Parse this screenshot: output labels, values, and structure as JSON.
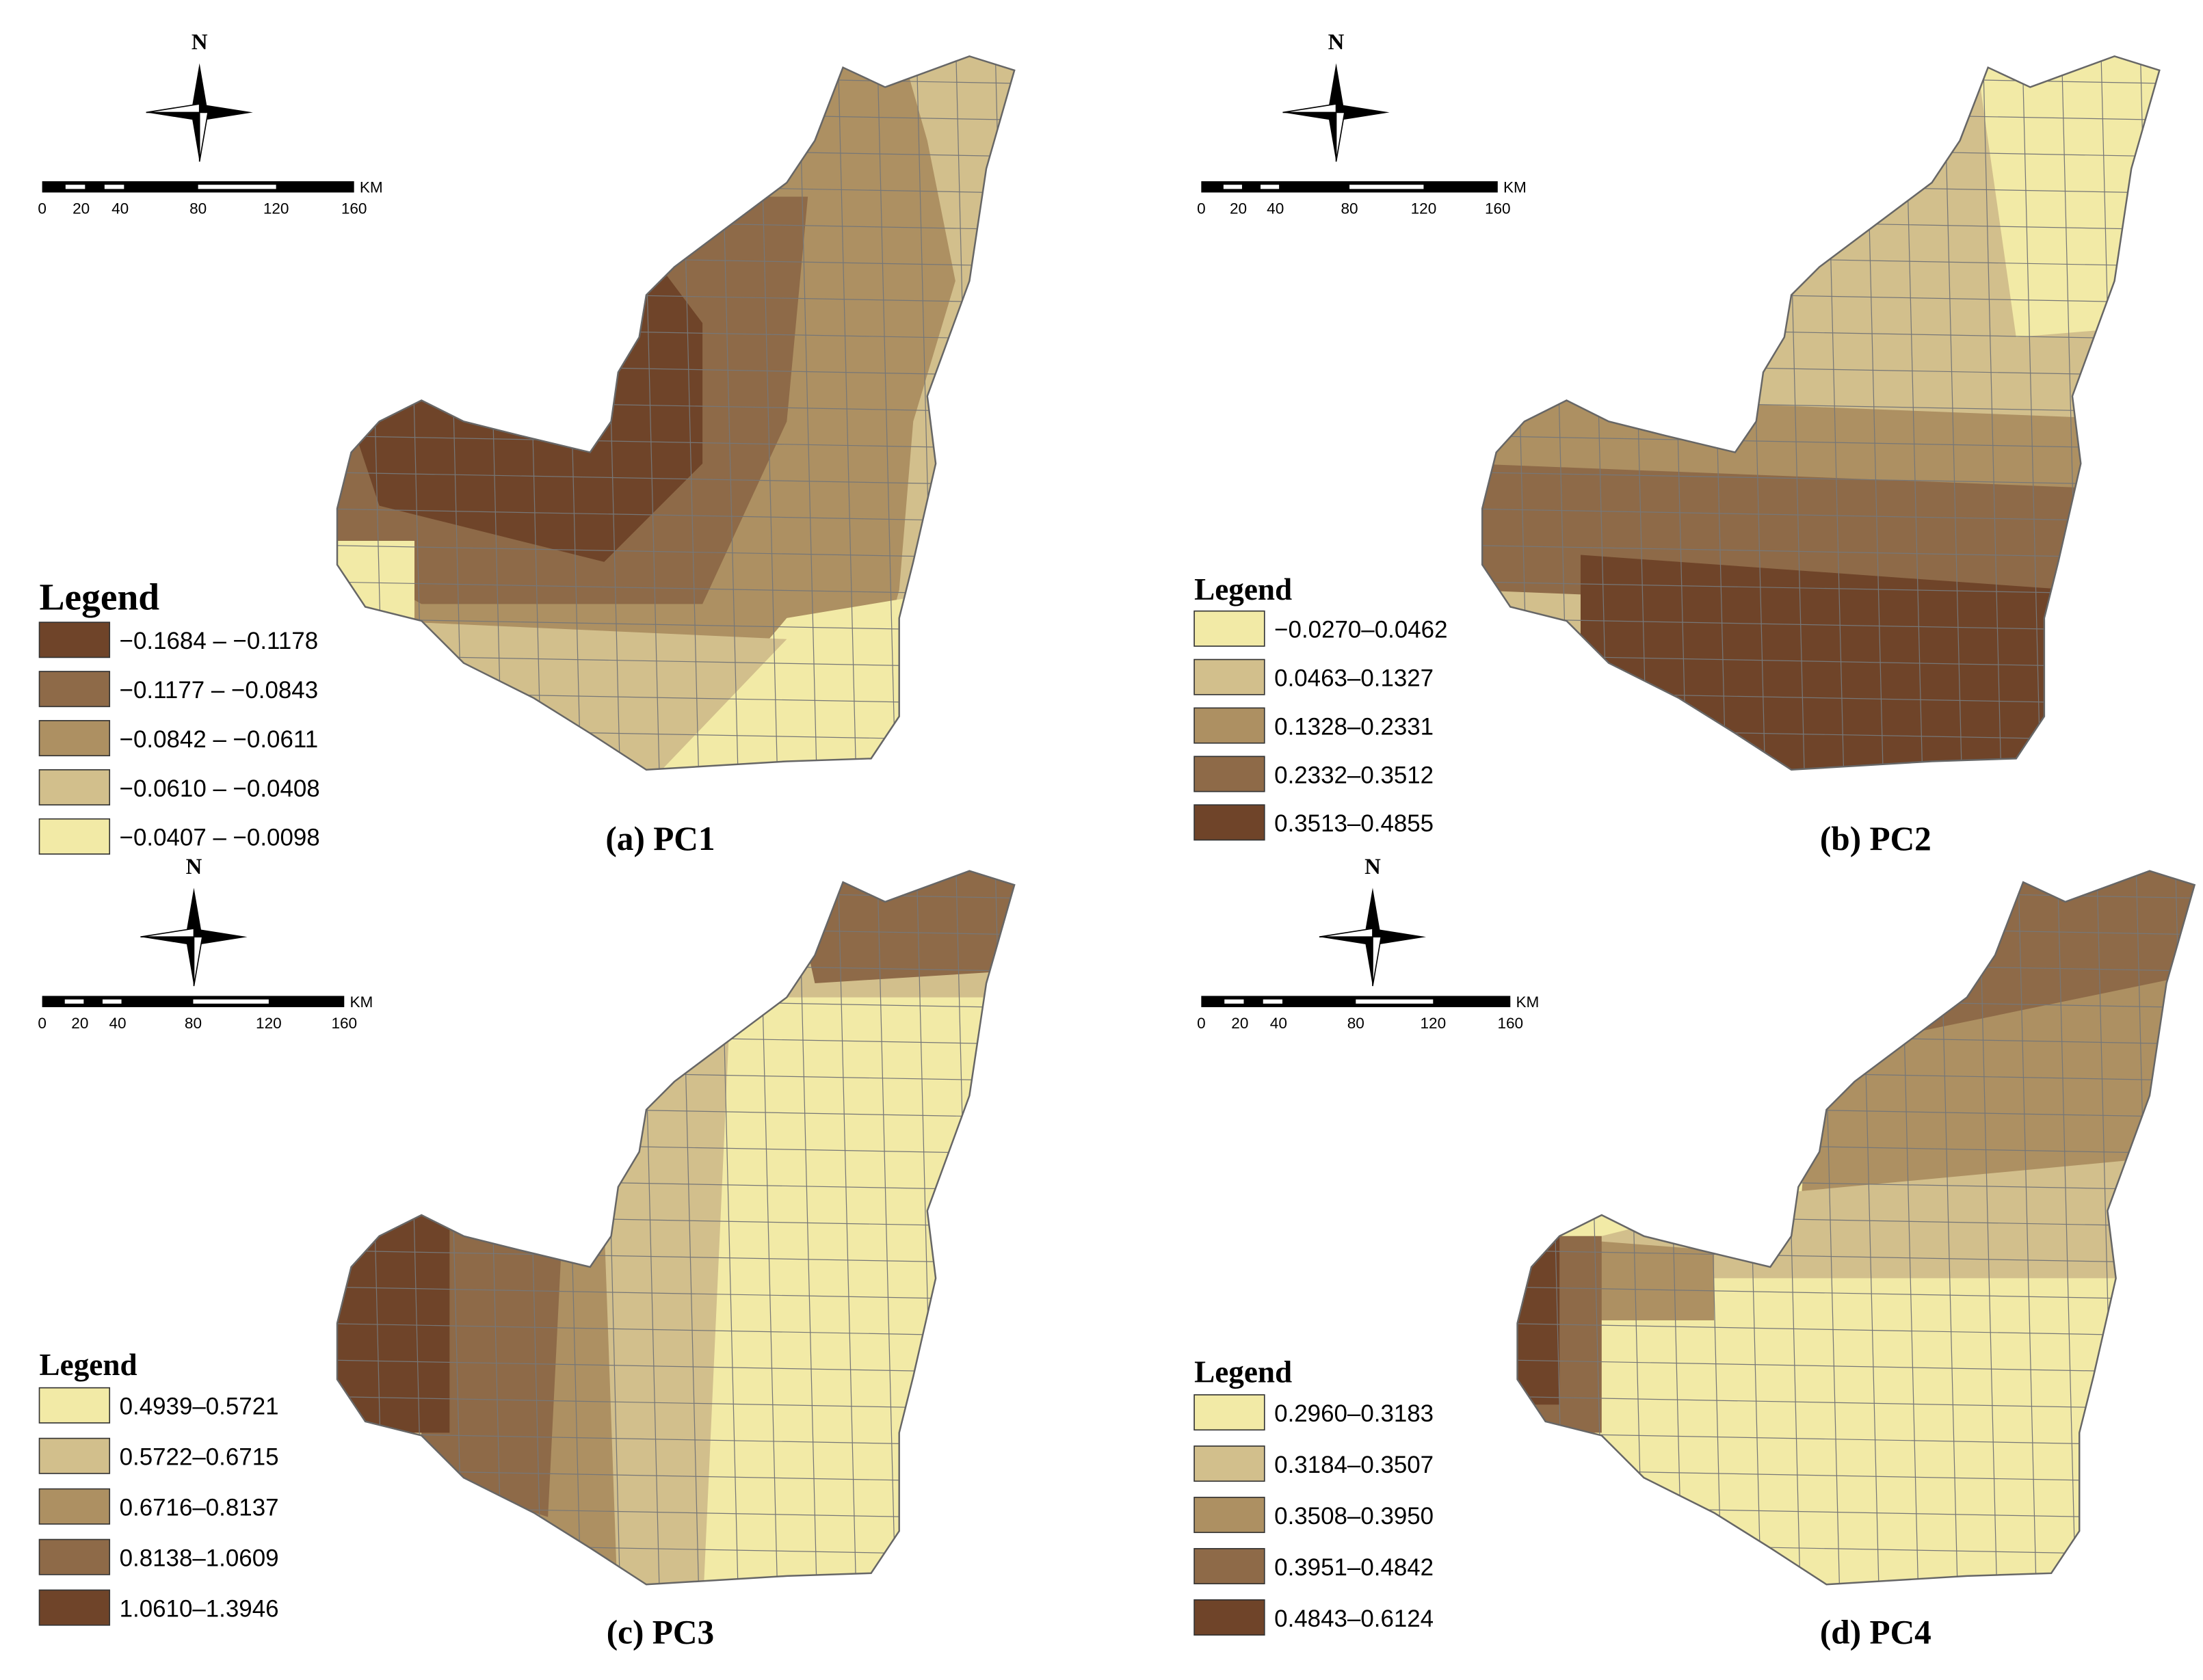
{
  "panels": [
    {
      "caption": "(a) PC1",
      "legend_title": "Legend",
      "north": "N",
      "scale_labels": [
        "0",
        "20",
        "40",
        "80",
        "120",
        "160"
      ],
      "scale_unit": "KM",
      "classes": [
        {
          "label": "−0.1684 – −0.1178",
          "color": "#6f4429"
        },
        {
          "label": "−0.1177 – −0.0843",
          "color": "#8e6a48"
        },
        {
          "label": "−0.0842 – −0.0611",
          "color": "#ad9062"
        },
        {
          "label": "−0.0610 – −0.0408",
          "color": "#d2bf8c"
        },
        {
          "label": "−0.0407 – −0.0098",
          "color": "#f2eaa6"
        }
      ]
    },
    {
      "caption": "(b) PC2",
      "legend_title": "Legend",
      "north": "N",
      "scale_labels": [
        "0",
        "20",
        "40",
        "80",
        "120",
        "160"
      ],
      "scale_unit": "KM",
      "classes": [
        {
          "label": "−0.0270–0.0462",
          "color": "#f2eaa6"
        },
        {
          "label": "0.0463–0.1327",
          "color": "#d2bf8c"
        },
        {
          "label": "0.1328–0.2331",
          "color": "#ad9062"
        },
        {
          "label": "0.2332–0.3512",
          "color": "#8e6a48"
        },
        {
          "label": "0.3513–0.4855",
          "color": "#6f4429"
        }
      ]
    },
    {
      "caption": "(c) PC3",
      "legend_title": "Legend",
      "north": "N",
      "scale_labels": [
        "0",
        "20",
        "40",
        "80",
        "120",
        "160"
      ],
      "scale_unit": "KM",
      "classes": [
        {
          "label": "0.4939–0.5721",
          "color": "#f2eaa6"
        },
        {
          "label": "0.5722–0.6715",
          "color": "#d2bf8c"
        },
        {
          "label": "0.6716–0.8137",
          "color": "#ad9062"
        },
        {
          "label": "0.8138–1.0609",
          "color": "#8e6a48"
        },
        {
          "label": "1.0610–1.3946",
          "color": "#6f4429"
        }
      ]
    },
    {
      "caption": "(d) PC4",
      "legend_title": "Legend",
      "north": "N",
      "scale_labels": [
        "0",
        "20",
        "40",
        "80",
        "120",
        "160"
      ],
      "scale_unit": "KM",
      "classes": [
        {
          "label": "0.2960–0.3183",
          "color": "#f2eaa6"
        },
        {
          "label": "0.3184–0.3507",
          "color": "#d2bf8c"
        },
        {
          "label": "0.3508–0.3950",
          "color": "#ad9062"
        },
        {
          "label": "0.3951–0.4842",
          "color": "#8e6a48"
        },
        {
          "label": "0.4843–0.6124",
          "color": "#6f4429"
        }
      ]
    }
  ]
}
